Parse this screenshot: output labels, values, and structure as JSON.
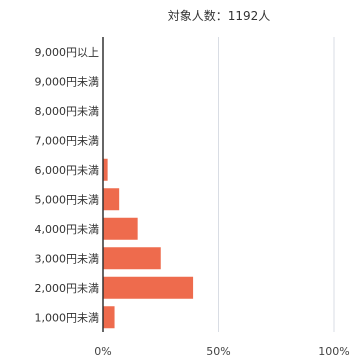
{
  "chart_data": {
    "type": "bar",
    "orientation": "horizontal",
    "title": "対象人数：1192人",
    "categories": [
      "1,000円未満",
      "2,000円未満",
      "3,000円未満",
      "4,000円未満",
      "5,000円未満",
      "6,000円未満",
      "7,000円未満",
      "8,000円未満",
      "9,000円未満",
      "9,000円以上"
    ],
    "series": [
      {
        "values": [
          5,
          39,
          25,
          15,
          7,
          2,
          0,
          0,
          0,
          0
        ]
      }
    ],
    "xlim": [
      0,
      100
    ],
    "x_ticks": [
      "0%",
      "50%",
      "100%"
    ],
    "x_unit": "%",
    "grid": true,
    "bar_color": "#ee6b4d",
    "grid_color": "#d9dde4",
    "axis_color": "#333333"
  }
}
